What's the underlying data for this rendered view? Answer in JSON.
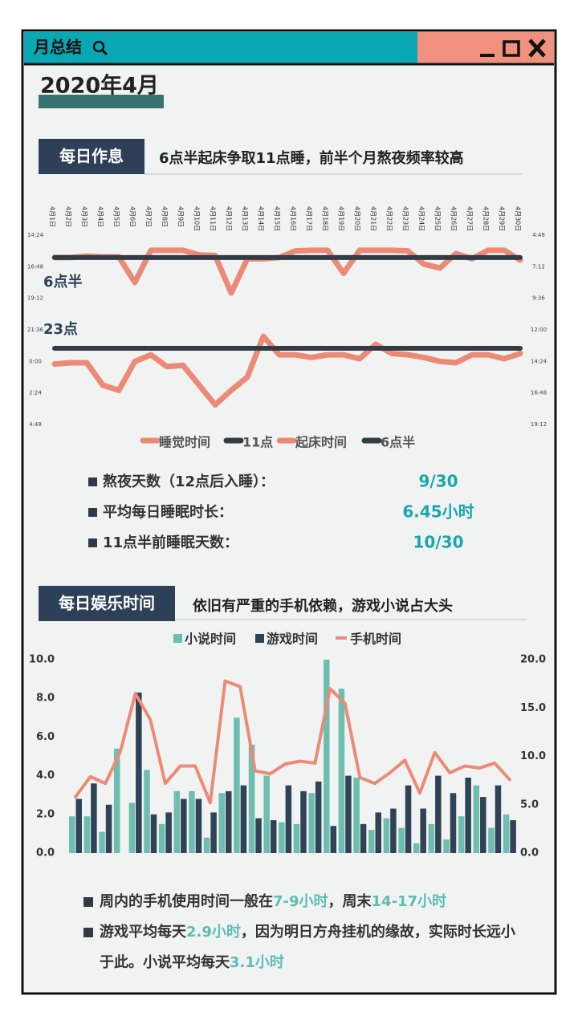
{
  "window": {
    "title": "月总结"
  },
  "month": "2020年4月",
  "routine": {
    "heading": "每日作息",
    "subtitle": "6点半起床争取11点睡，前半个月熬夜频率较高",
    "stats": [
      {
        "label": "熬夜天数（12点后入睡）：",
        "value": "9/30"
      },
      {
        "label": "平均每日睡眠时长：",
        "value": "6.45小时"
      },
      {
        "label": "11点半前睡眠天数：",
        "value": "10/30"
      }
    ]
  },
  "entertainment": {
    "heading": "每日娱乐时间",
    "subtitle": "依旧有严重的手机依赖，游戏小说占大头",
    "notes": [
      [
        "周内的手机使用时间一般在",
        "7-9小时",
        "，周末",
        "14-17小时"
      ],
      [
        "游戏平均每天",
        "2.9小时",
        "，因为明日方舟挂机的缘故，实际时长远小于此。小说平均每天",
        "3.1小时"
      ]
    ]
  },
  "chart_data": [
    {
      "type": "line",
      "categories": [
        "4月1日",
        "4月2日",
        "4月3日",
        "4月4日",
        "4月5日",
        "4月6日",
        "4月7日",
        "4月8日",
        "4月9日",
        "4月10日",
        "4月11日",
        "4月12日",
        "4月13日",
        "4月14日",
        "4月15日",
        "4月16日",
        "4月17日",
        "4月18日",
        "4月19日",
        "4月20日",
        "4月21日",
        "4月22日",
        "4月23日",
        "4月24日",
        "4月25日",
        "4月26日",
        "4月27日",
        "4月28日",
        "4月29日",
        "4月30日"
      ],
      "ylim": [
        28.8,
        14.4
      ],
      "yticks": [
        {
          "value": 14.4,
          "label": "14:24"
        },
        {
          "value": 16.8,
          "label": "16:48"
        },
        {
          "value": 19.2,
          "label": "19:12"
        },
        {
          "value": 21.6,
          "label": "21:36"
        },
        {
          "value": 24,
          "label": "0:00"
        },
        {
          "value": 26.4,
          "label": "2:24"
        },
        {
          "value": 28.8,
          "label": "4:48"
        }
      ],
      "y2lim": [
        19.2,
        4.8
      ],
      "y2ticks": [
        {
          "value": 4.8,
          "label": "4:48"
        },
        {
          "value": 7.2,
          "label": "7:12"
        },
        {
          "value": 9.6,
          "label": "9:36"
        },
        {
          "value": 12,
          "label": "12:00"
        },
        {
          "value": 14.4,
          "label": "14:24"
        },
        {
          "value": 16.8,
          "label": "16:48"
        },
        {
          "value": 19.2,
          "label": "19:12"
        }
      ],
      "annotations": [
        "6点半",
        "23点"
      ],
      "series": [
        {
          "name": "睡觉时间",
          "color": "#ec8a78",
          "values": [
            24.2,
            24.1,
            24.1,
            25.8,
            26.2,
            24,
            23.5,
            24.4,
            24.3,
            25.8,
            27.3,
            26.2,
            25.2,
            22.1,
            23.5,
            23.5,
            23.7,
            23.5,
            23.5,
            23.8,
            22.7,
            23.4,
            23.5,
            23.7,
            24,
            24.1,
            23.5,
            23.5,
            23.8,
            23.4
          ]
        },
        {
          "name": "11点",
          "color": "#333c44",
          "values": [
            23,
            23,
            23,
            23,
            23,
            23,
            23,
            23,
            23,
            23,
            23,
            23,
            23,
            23,
            23,
            23,
            23,
            23,
            23,
            23,
            23,
            23,
            23,
            23,
            23,
            23,
            23,
            23,
            23,
            23
          ]
        },
        {
          "name": "起床时间",
          "color": "#ec8a78",
          "axis": "y2",
          "values": [
            6.5,
            6.5,
            6.4,
            6.45,
            6.45,
            8.4,
            5.95,
            5.95,
            5.95,
            6.3,
            6.35,
            9.2,
            6.6,
            6.6,
            6.5,
            6,
            5.95,
            5.95,
            7.7,
            5.95,
            5.95,
            5.95,
            6,
            7,
            7.3,
            6.2,
            6.6,
            5.95,
            5.95,
            6.7
          ]
        },
        {
          "name": "6点半",
          "color": "#333c44",
          "axis": "y2",
          "values": [
            6.5,
            6.5,
            6.5,
            6.5,
            6.5,
            6.5,
            6.5,
            6.5,
            6.5,
            6.5,
            6.5,
            6.5,
            6.5,
            6.5,
            6.5,
            6.5,
            6.5,
            6.5,
            6.5,
            6.5,
            6.5,
            6.5,
            6.5,
            6.5,
            6.5,
            6.5,
            6.5,
            6.5,
            6.5,
            6.5
          ]
        }
      ]
    },
    {
      "type": "combo",
      "categories": [
        null,
        null,
        null,
        null,
        null,
        null,
        null,
        null,
        null,
        null,
        null,
        null,
        null,
        null,
        null,
        null,
        null,
        null,
        null,
        null,
        null,
        null,
        null,
        null,
        null,
        null,
        null,
        null,
        null,
        null
      ],
      "ylim": [
        0,
        10
      ],
      "yticks": [
        {
          "value": 0,
          "label": "0.0"
        },
        {
          "value": 2,
          "label": "2.0"
        },
        {
          "value": 4,
          "label": "4.0"
        },
        {
          "value": 6,
          "label": "6.0"
        },
        {
          "value": 8,
          "label": "8.0"
        },
        {
          "value": 10,
          "label": "10.0"
        }
      ],
      "y2lim": [
        0,
        20
      ],
      "y2ticks": [
        {
          "value": 0,
          "label": "0.0"
        },
        {
          "value": 5,
          "label": "5.0"
        },
        {
          "value": 10,
          "label": "10.0"
        },
        {
          "value": 15,
          "label": "15.0"
        },
        {
          "value": 20,
          "label": "20.0"
        }
      ],
      "series": [
        {
          "name": "小说时间",
          "type": "bar",
          "color": "#6dbdb0",
          "values": [
            1.9,
            1.9,
            1.1,
            5.4,
            2.6,
            4.3,
            1.5,
            3.2,
            3.2,
            0.8,
            3.1,
            7,
            5.6,
            4,
            1.6,
            1.5,
            3.1,
            10,
            8.5,
            3.9,
            1.2,
            1.8,
            1.3,
            0.5,
            1.5,
            0.7,
            1.9,
            3.5,
            1.3,
            2
          ]
        },
        {
          "name": "游戏时间",
          "type": "bar",
          "color": "#2f4256",
          "values": [
            2.8,
            3.6,
            2.5,
            0,
            8.3,
            2,
            2.1,
            2.8,
            2.8,
            2.1,
            3.2,
            3.5,
            1.8,
            1.7,
            3.5,
            3.2,
            3.7,
            1.4,
            4,
            1.5,
            2.1,
            2.3,
            3.5,
            2.3,
            4,
            3.1,
            3.9,
            2.9,
            3.5,
            1.7
          ]
        },
        {
          "name": "手机时间",
          "type": "line",
          "axis": "y2",
          "color": "#ec8a78",
          "values": [
            5.8,
            7.9,
            7.2,
            10.5,
            16.5,
            13.8,
            7.2,
            9,
            9,
            5.2,
            17.8,
            17.2,
            8.5,
            8.2,
            9.2,
            9.5,
            9.3,
            17,
            15.5,
            7.8,
            7.2,
            8.3,
            9.6,
            6.2,
            10.4,
            8.3,
            9,
            8.8,
            9.3,
            7.6
          ]
        }
      ]
    }
  ]
}
